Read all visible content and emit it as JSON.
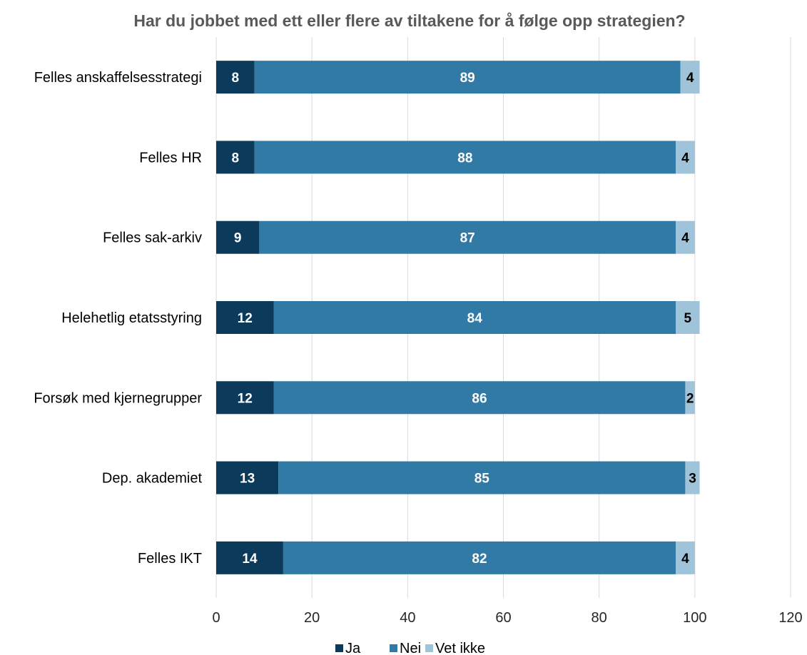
{
  "chart_data": {
    "type": "bar",
    "orientation": "horizontal",
    "stacked": true,
    "title": "Har du jobbet med ett eller flere av tiltakene for å følge opp strategien?",
    "categories": [
      "Felles anskaffelsesstrategi",
      "Felles HR",
      "Felles sak-arkiv",
      "Helehetlig etatsstyring",
      "Forsøk med kjernegrupper",
      "Dep. akademiet",
      "Felles IKT"
    ],
    "series": [
      {
        "name": "Ja",
        "color": "#0b3a5a",
        "label_color": "#ffffff",
        "values": [
          8,
          8,
          9,
          12,
          12,
          13,
          14
        ]
      },
      {
        "name": "Nei",
        "color": "#317aa6",
        "label_color": "#ffffff",
        "values": [
          89,
          88,
          87,
          84,
          86,
          85,
          82
        ]
      },
      {
        "name": "Vet ikke",
        "color": "#9fc4d9",
        "label_color": "#000000",
        "values": [
          4,
          4,
          4,
          5,
          2,
          3,
          4
        ]
      }
    ],
    "xlim": [
      0,
      120
    ],
    "xticks": [
      0,
      20,
      40,
      60,
      80,
      100,
      120
    ],
    "xtick_labels": [
      "0",
      "20",
      "40",
      "60",
      "80",
      "100",
      "120"
    ],
    "grid": true,
    "legend": "bottom"
  }
}
